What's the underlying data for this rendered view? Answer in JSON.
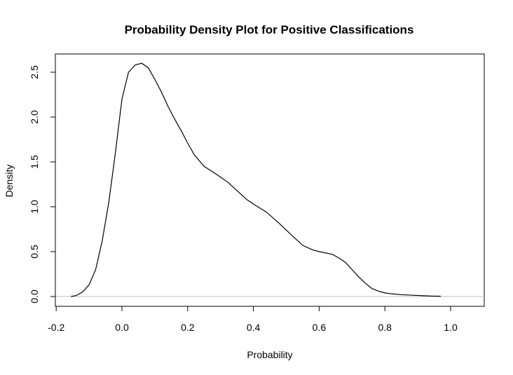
{
  "chart_data": {
    "type": "line",
    "title": "Probability Density Plot for Positive Classifications",
    "xlabel": "Probability",
    "ylabel": "Density",
    "xlim": [
      -0.2,
      1.1
    ],
    "ylim": [
      0,
      2.7
    ],
    "x_ticks": [
      -0.2,
      0.0,
      0.2,
      0.4,
      0.6,
      0.8,
      1.0
    ],
    "x_tick_labels": [
      "-0.2",
      "0.0",
      "0.2",
      "0.4",
      "0.6",
      "0.8",
      "1.0"
    ],
    "y_ticks": [
      0.0,
      0.5,
      1.0,
      1.5,
      2.0,
      2.5
    ],
    "y_tick_labels": [
      "0.0",
      "0.5",
      "1.0",
      "1.5",
      "2.0",
      "2.5"
    ],
    "grid": false,
    "baseline": 0,
    "colors": {
      "line": "#000000",
      "baseline": "#bebebe",
      "box": "#000000"
    },
    "series": [
      {
        "x": [
          -0.155,
          -0.14,
          -0.12,
          -0.1,
          -0.08,
          -0.06,
          -0.04,
          -0.02,
          0.0,
          0.02,
          0.04,
          0.06,
          0.08,
          0.1,
          0.12,
          0.14,
          0.16,
          0.18,
          0.2,
          0.22,
          0.25,
          0.28,
          0.3,
          0.32,
          0.35,
          0.38,
          0.4,
          0.44,
          0.48,
          0.52,
          0.55,
          0.58,
          0.6,
          0.64,
          0.66,
          0.68,
          0.7,
          0.72,
          0.74,
          0.76,
          0.78,
          0.8,
          0.82,
          0.85,
          0.88,
          0.91,
          0.94,
          0.97
        ],
        "y": [
          0.0,
          0.01,
          0.05,
          0.13,
          0.3,
          0.62,
          1.05,
          1.6,
          2.2,
          2.5,
          2.58,
          2.6,
          2.55,
          2.42,
          2.28,
          2.12,
          1.98,
          1.85,
          1.71,
          1.58,
          1.45,
          1.38,
          1.33,
          1.28,
          1.18,
          1.08,
          1.03,
          0.94,
          0.81,
          0.67,
          0.57,
          0.52,
          0.5,
          0.47,
          0.43,
          0.38,
          0.3,
          0.22,
          0.15,
          0.09,
          0.06,
          0.04,
          0.03,
          0.02,
          0.015,
          0.01,
          0.005,
          0.003
        ]
      }
    ]
  }
}
